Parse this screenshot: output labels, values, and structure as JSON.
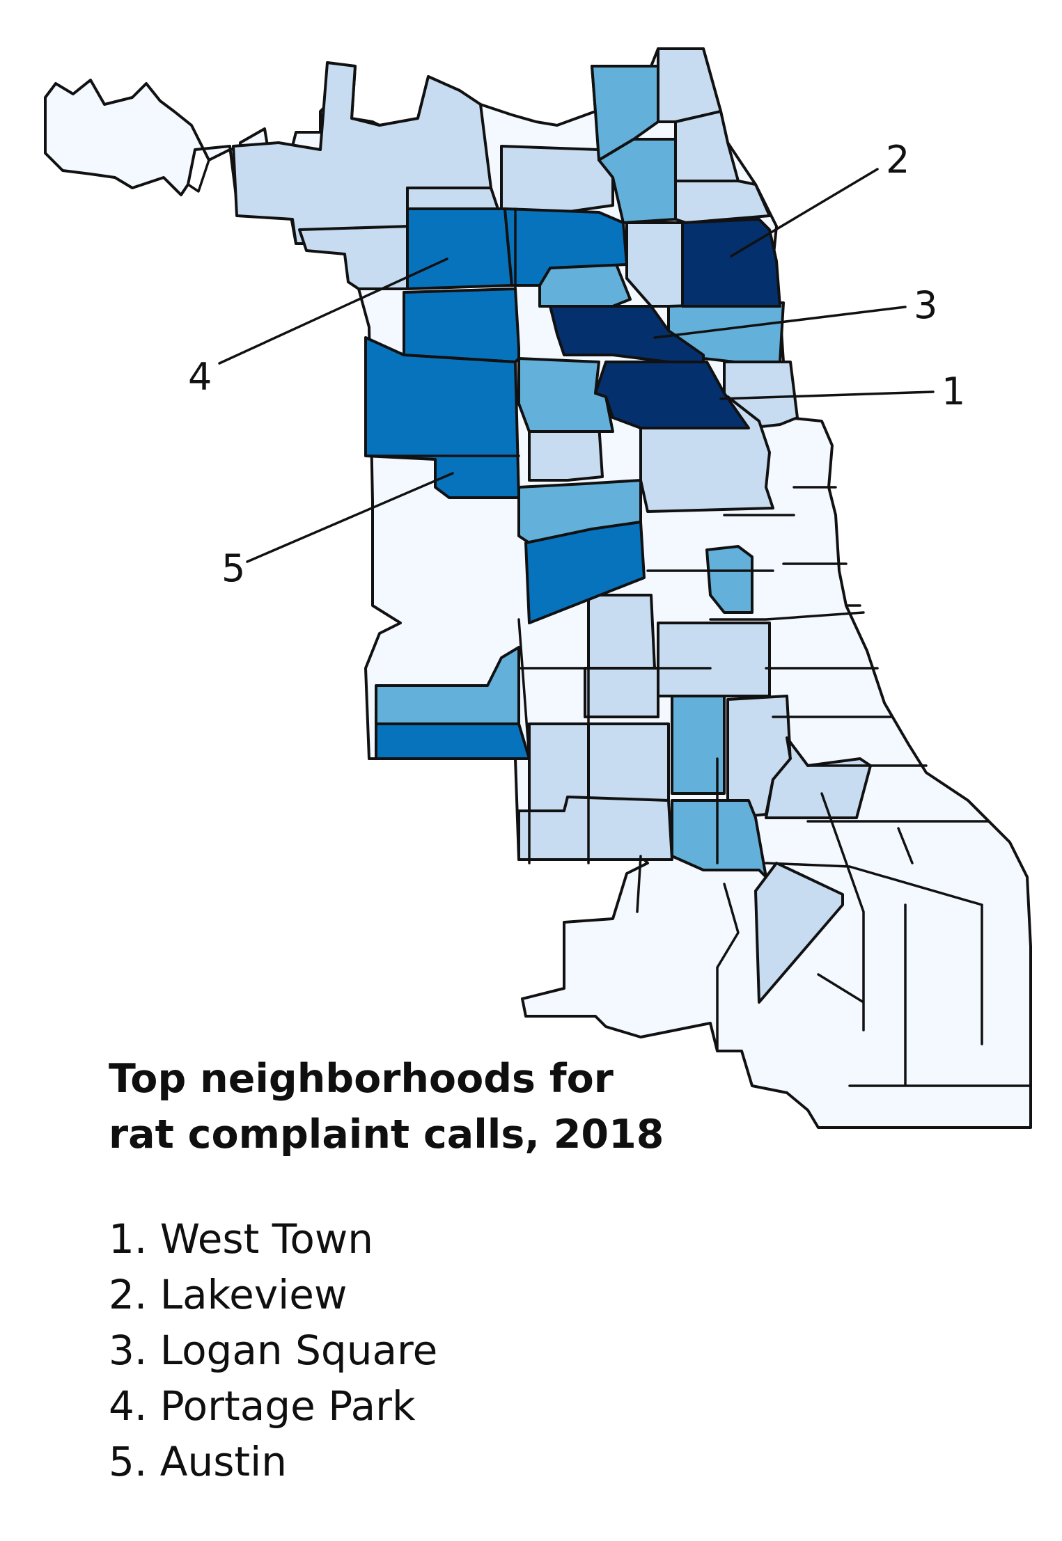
{
  "title": {
    "line1": "Top neighborhoods for",
    "line2": "rat complaint calls, 2018"
  },
  "ranking": [
    {
      "rank": "1",
      "name": "West Town",
      "display": "1. West Town"
    },
    {
      "rank": "2",
      "name": "Lakeview",
      "display": "2. Lakeview"
    },
    {
      "rank": "3",
      "name": "Logan Square",
      "display": "3. Logan Square"
    },
    {
      "rank": "4",
      "name": "Portage Park",
      "display": "4. Portage Park"
    },
    {
      "rank": "5",
      "name": "Austin",
      "display": "5. Austin"
    }
  ],
  "palette": {
    "level0": "#f4f9ff",
    "level1": "#c7dcf1",
    "level2": "#63b1da",
    "level3": "#0873bd",
    "level4": "#04306e",
    "outline": "#111111"
  }
}
